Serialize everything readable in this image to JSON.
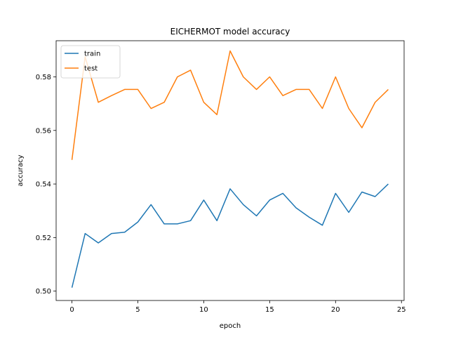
{
  "chart_data": {
    "type": "line",
    "title": "EICHERMOT model accuracy",
    "xlabel": "epoch",
    "ylabel": "accuracy",
    "xlim": [
      -1.2,
      25.2
    ],
    "ylim": [
      0.4965,
      0.5935
    ],
    "xticks": [
      0,
      5,
      10,
      15,
      20,
      25
    ],
    "yticks": [
      0.5,
      0.52,
      0.54,
      0.56,
      0.58
    ],
    "ytick_labels": [
      "0.50",
      "0.52",
      "0.54",
      "0.56",
      "0.58"
    ],
    "grid": false,
    "legend_position": "top-left",
    "x": [
      0,
      1,
      2,
      3,
      4,
      5,
      6,
      7,
      8,
      9,
      10,
      11,
      12,
      13,
      14,
      15,
      16,
      17,
      18,
      19,
      20,
      21,
      22,
      23,
      24
    ],
    "series": [
      {
        "name": "train",
        "color": "#1f77b4",
        "values": [
          0.5013,
          0.5215,
          0.518,
          0.5215,
          0.522,
          0.5258,
          0.5323,
          0.5251,
          0.5251,
          0.5263,
          0.534,
          0.5263,
          0.5382,
          0.5323,
          0.5281,
          0.534,
          0.5365,
          0.5311,
          0.5276,
          0.5246,
          0.5365,
          0.5294,
          0.537,
          0.5353,
          0.54
        ]
      },
      {
        "name": "test",
        "color": "#ff7f0e",
        "values": [
          0.549,
          0.5875,
          0.5705,
          0.573,
          0.5753,
          0.5753,
          0.5682,
          0.5705,
          0.58,
          0.5825,
          0.5705,
          0.5659,
          0.5897,
          0.58,
          0.5753,
          0.58,
          0.573,
          0.5753,
          0.5753,
          0.5682,
          0.58,
          0.5682,
          0.561,
          0.5705,
          0.5753
        ]
      }
    ]
  }
}
